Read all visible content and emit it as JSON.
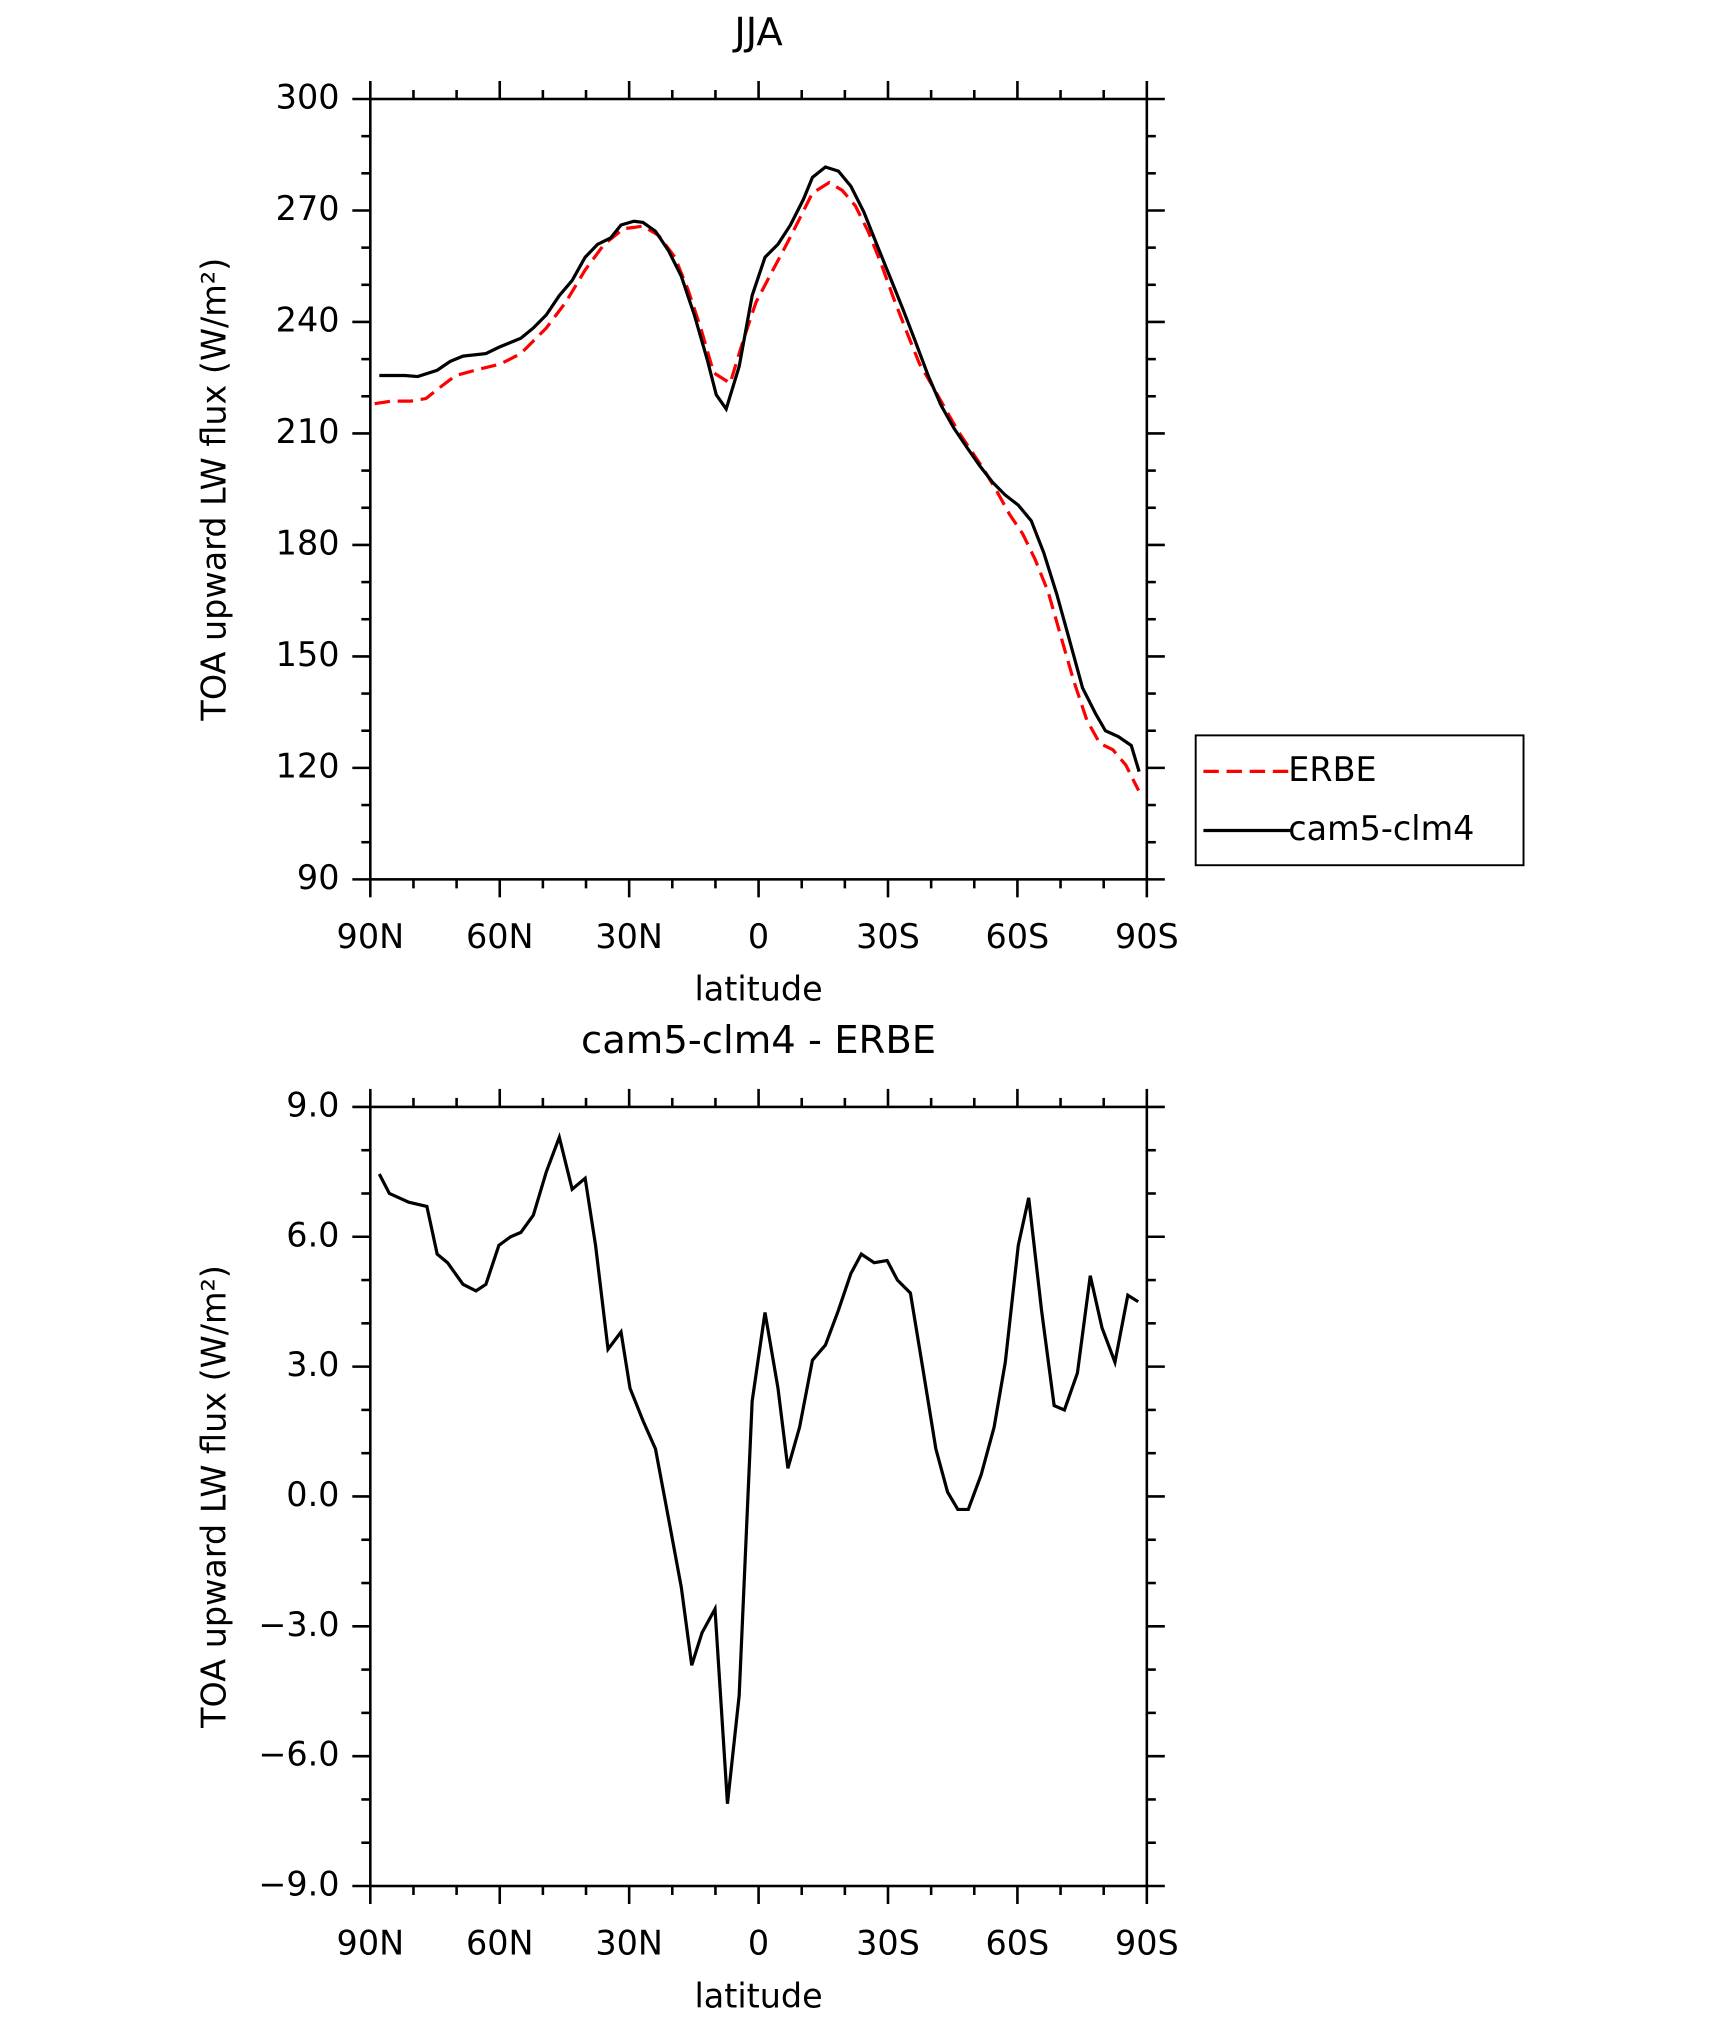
{
  "chart_data": [
    {
      "type": "line",
      "title": "JJA",
      "xlabel": "latitude",
      "ylabel": "TOA upward LW flux (W/m²)",
      "xlim": [
        90,
        -90
      ],
      "xticks": [
        {
          "value": 90,
          "label": "90N"
        },
        {
          "value": 60,
          "label": "60N"
        },
        {
          "value": 30,
          "label": "30N"
        },
        0,
        {
          "value": -30,
          "label": "30S"
        },
        {
          "value": -60,
          "label": "60S"
        },
        {
          "value": -90,
          "label": "90S"
        }
      ],
      "ylim": [
        90,
        300
      ],
      "yticks": [
        90,
        120,
        150,
        180,
        210,
        240,
        270,
        300
      ],
      "legend": "right",
      "series": [
        {
          "name": "ERBE",
          "color": "#ff0000",
          "dash": true,
          "x": [
            89,
            85.1,
            80.6,
            77.1,
            74.1,
            70.2,
            65.7,
            59.8,
            55.1,
            52.2,
            49.2,
            44.7,
            40.2,
            35.8,
            31.3,
            26.8,
            23.2,
            19.4,
            16.4,
            13.4,
            10.4,
            6.6,
            3.6,
            0.6,
            -3,
            -6.5,
            -9.5,
            -12.5,
            -16.4,
            -19.4,
            -22.4,
            -25.4,
            -28.4,
            -31.3,
            -34.3,
            -37.3,
            -40.3,
            -43.3,
            -46.2,
            -49.2,
            -52.2,
            -55.2,
            -58.2,
            -61.2,
            -64.1,
            -67.1,
            -70.1,
            -73.1,
            -76.1,
            -79.1,
            -82.1,
            -85.1,
            -88.1
          ],
          "values": [
            218,
            218.7,
            218.7,
            219.4,
            222.2,
            225.6,
            227,
            228.7,
            231.5,
            234.9,
            238.4,
            245.3,
            254,
            260.9,
            265.1,
            265.8,
            263.3,
            257.4,
            248.8,
            238.4,
            226.3,
            223.5,
            234.9,
            245.3,
            253.3,
            260.9,
            267.8,
            274.7,
            277.5,
            275.4,
            271.3,
            264.4,
            255.7,
            246.4,
            237.4,
            228.7,
            222.8,
            216.6,
            210.7,
            205.5,
            200.3,
            194.5,
            188.2,
            183,
            176.1,
            167.4,
            155.3,
            143.2,
            132.8,
            126.6,
            124.9,
            120.8,
            113.9
          ]
        },
        {
          "name": "cam5-clm4",
          "color": "#000000",
          "dash": false,
          "x": [
            87.9,
            82,
            79,
            74.5,
            71.5,
            68.5,
            63.2,
            60.2,
            55.1,
            52.2,
            49.2,
            46.2,
            43.2,
            40.2,
            37.3,
            34.3,
            31.9,
            28.9,
            26.8,
            23.9,
            20.9,
            17.9,
            14.9,
            11.9,
            9.8,
            7.5,
            4.5,
            1.5,
            -1.5,
            -4.5,
            -7.4,
            -10.4,
            -12.5,
            -15.5,
            -18.5,
            -21.4,
            -24.4,
            -27.4,
            -30.4,
            -33.4,
            -36.3,
            -39.3,
            -42.3,
            -45.3,
            -48.3,
            -51.2,
            -54.2,
            -57.2,
            -60.2,
            -63.2,
            -66.1,
            -69.1,
            -72.1,
            -75.1,
            -78.1,
            -80.4,
            -83.4,
            -86.4,
            -88.2
          ],
          "values": [
            225.6,
            225.6,
            225.3,
            227,
            229.4,
            230.8,
            231.5,
            233.2,
            235.6,
            238.4,
            241.9,
            247.1,
            251.2,
            257.4,
            260.9,
            262.6,
            266.1,
            267.1,
            266.8,
            264.4,
            259.2,
            252.3,
            241.9,
            229.8,
            220.4,
            216.6,
            228,
            247.1,
            257.4,
            260.9,
            266.1,
            273,
            278.9,
            281.7,
            280.6,
            276.5,
            269.6,
            260.9,
            252.3,
            243.6,
            234.9,
            225.6,
            217.6,
            211.4,
            206.2,
            201.4,
            196.9,
            193.4,
            190.7,
            186.5,
            177.9,
            166.8,
            154.3,
            141.5,
            134.6,
            130,
            128.4,
            126,
            119
          ]
        }
      ]
    },
    {
      "type": "line",
      "title": "cam5-clm4 - ERBE",
      "xlabel": "latitude",
      "ylabel": "TOA upward LW flux (W/m²)",
      "xlim": [
        90,
        -90
      ],
      "xticks": [
        {
          "value": 90,
          "label": "90N"
        },
        {
          "value": 60,
          "label": "60N"
        },
        {
          "value": 30,
          "label": "30N"
        },
        0,
        {
          "value": -30,
          "label": "30S"
        },
        {
          "value": -60,
          "label": "60S"
        },
        {
          "value": -90,
          "label": "90S"
        }
      ],
      "ylim": [
        -9,
        9
      ],
      "yticks": [
        {
          "value": -9,
          "label": "−9.0"
        },
        {
          "value": -6,
          "label": "−6.0"
        },
        {
          "value": -3,
          "label": "−3.0"
        },
        {
          "value": 0,
          "label": "0.0"
        },
        {
          "value": 3,
          "label": "3.0"
        },
        {
          "value": 6,
          "label": "6.0"
        },
        {
          "value": 9,
          "label": "9.0"
        }
      ],
      "series": [
        {
          "color": "#000000",
          "dash": false,
          "x": [
            87.9,
            85.6,
            81.1,
            76.9,
            74.5,
            72.1,
            68.5,
            65.5,
            63.2,
            60.2,
            57.5,
            55.1,
            52.2,
            49.2,
            46.2,
            43.2,
            40.2,
            37.8,
            34.9,
            31.9,
            29.8,
            26.8,
            23.9,
            20.9,
            17.9,
            15.5,
            13.1,
            10.1,
            7.2,
            4.5,
            1.5,
            -1.5,
            -4.5,
            -6.8,
            -9.5,
            -12.5,
            -15.5,
            -18.5,
            -21.4,
            -23.8,
            -26.8,
            -29.8,
            -32.2,
            -35.2,
            -38.1,
            -41.1,
            -43.8,
            -46.2,
            -48.6,
            -51.6,
            -54.6,
            -57.2,
            -60.2,
            -62.6,
            -65.6,
            -68.5,
            -70.9,
            -73.9,
            -76.9,
            -79.6,
            -82.6,
            -85.6,
            -88
          ],
          "values": [
            7.45,
            7,
            6.8,
            6.7,
            5.6,
            5.4,
            4.9,
            4.75,
            4.9,
            5.8,
            6,
            6.1,
            6.5,
            7.5,
            8.3,
            7.1,
            7.35,
            5.8,
            3.4,
            3.8,
            2.5,
            1.75,
            1.1,
            -0.5,
            -2.1,
            -3.9,
            -3.15,
            -2.6,
            -7.1,
            -4.6,
            2.2,
            4.25,
            2.5,
            0.65,
            1.6,
            3.15,
            3.5,
            4.3,
            5.15,
            5.6,
            5.4,
            5.45,
            5,
            4.7,
            2.95,
            1.1,
            0.1,
            -0.3,
            -0.3,
            0.5,
            1.6,
            3.1,
            5.8,
            6.9,
            4.3,
            2.1,
            2,
            2.85,
            5.1,
            3.9,
            3.1,
            4.65,
            4.5
          ]
        }
      ]
    }
  ]
}
